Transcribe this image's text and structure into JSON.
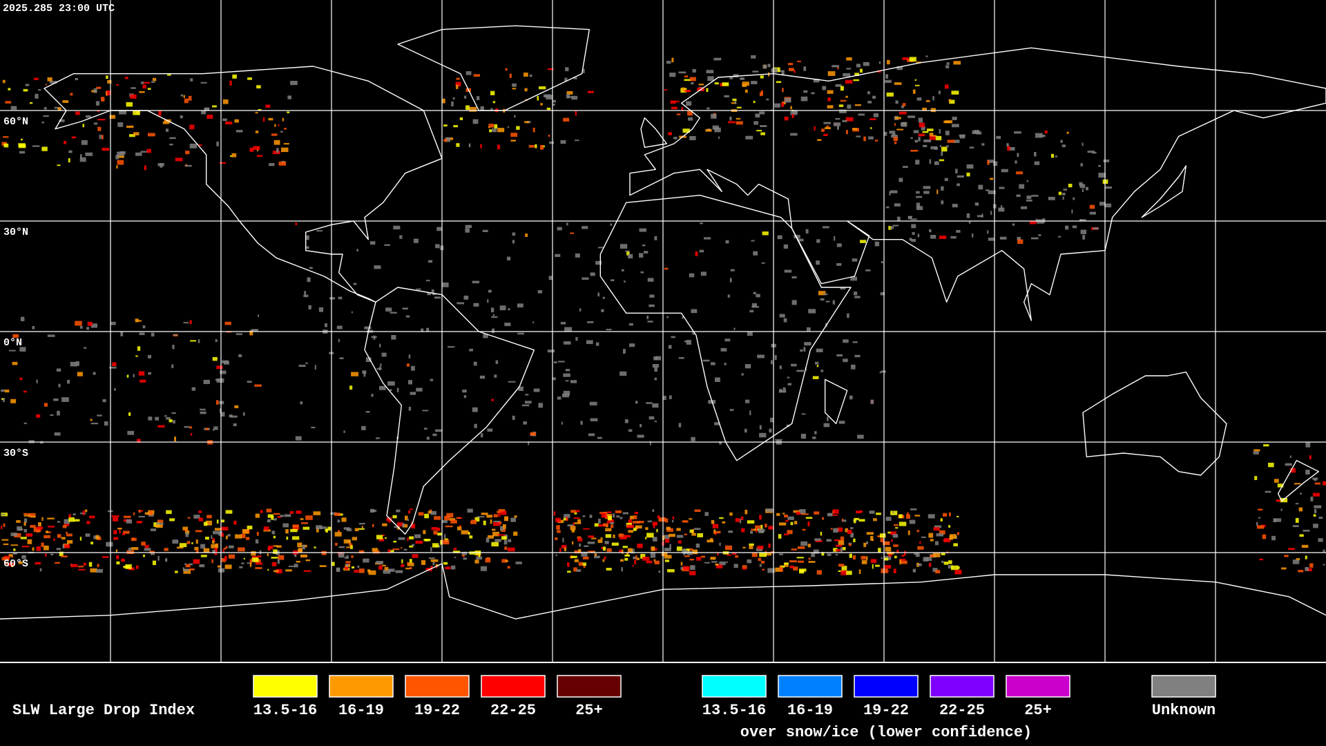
{
  "timestamp": "2025.285 23:00 UTC",
  "latitude_labels": [
    "60°N",
    "30°N",
    "0°N",
    "30°S",
    "60°S"
  ],
  "legend": {
    "title": "SLW Large Drop Index",
    "items": [
      {
        "label": "13.5-16",
        "color": "#ffff00"
      },
      {
        "label": "16-19",
        "color": "#ff9900"
      },
      {
        "label": "19-22",
        "color": "#ff5500"
      },
      {
        "label": "22-25",
        "color": "#ff0000"
      },
      {
        "label": "25+",
        "color": "#660000"
      }
    ],
    "snow_items": [
      {
        "label": "13.5-16",
        "color": "#00ffff"
      },
      {
        "label": "16-19",
        "color": "#0080ff"
      },
      {
        "label": "19-22",
        "color": "#0000ff"
      },
      {
        "label": "22-25",
        "color": "#8000ff"
      },
      {
        "label": "25+",
        "color": "#cc00cc"
      }
    ],
    "snow_caption": "over snow/ice (lower confidence)",
    "unknown": {
      "label": "Unknown",
      "color": "#808080"
    }
  }
}
